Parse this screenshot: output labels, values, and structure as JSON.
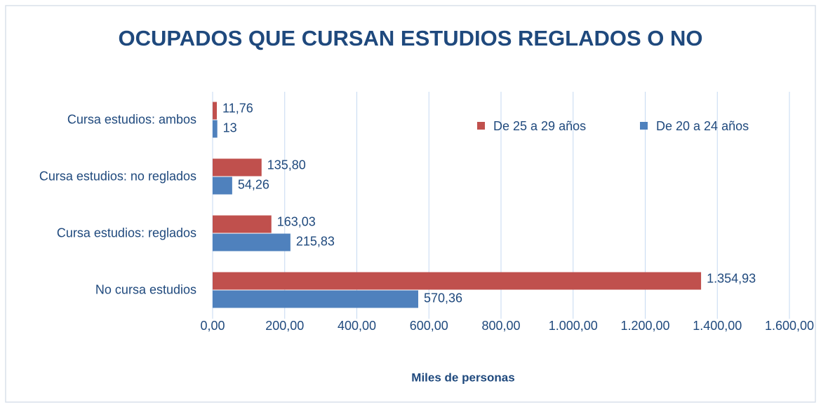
{
  "chart_data": {
    "type": "hbar",
    "title": "OCUPADOS QUE CURSAN ESTUDIOS REGLADOS O NO",
    "xlabel": "Miles de personas",
    "categories": [
      "Cursa estudios: ambos",
      "Cursa estudios: no reglados",
      "Cursa estudios: reglados",
      "No cursa estudios"
    ],
    "series": [
      {
        "name": "De 25 a 29 años",
        "color": "#c0504d",
        "values": [
          11.76,
          135.8,
          163.03,
          1354.93
        ],
        "value_labels": [
          "11,76",
          "135,80",
          "163,03",
          "1.354,93"
        ]
      },
      {
        "name": "De 20 a 24 años",
        "color": "#4f81bd",
        "values": [
          13,
          54.26,
          215.83,
          570.36
        ],
        "value_labels": [
          "13",
          "54,26",
          "215,83",
          "570,36"
        ]
      }
    ],
    "xlim": [
      0,
      1600
    ],
    "xticks": [
      {
        "value": 0,
        "label": "0,00"
      },
      {
        "value": 200,
        "label": "200,00"
      },
      {
        "value": 400,
        "label": "400,00"
      },
      {
        "value": 600,
        "label": "600,00"
      },
      {
        "value": 800,
        "label": "800,00"
      },
      {
        "value": 1000,
        "label": "1.000,00"
      },
      {
        "value": 1200,
        "label": "1.200,00"
      },
      {
        "value": 1400,
        "label": "1.400,00"
      },
      {
        "value": 1600,
        "label": "1.600,00"
      }
    ],
    "grid": true,
    "legend": "top-right"
  }
}
